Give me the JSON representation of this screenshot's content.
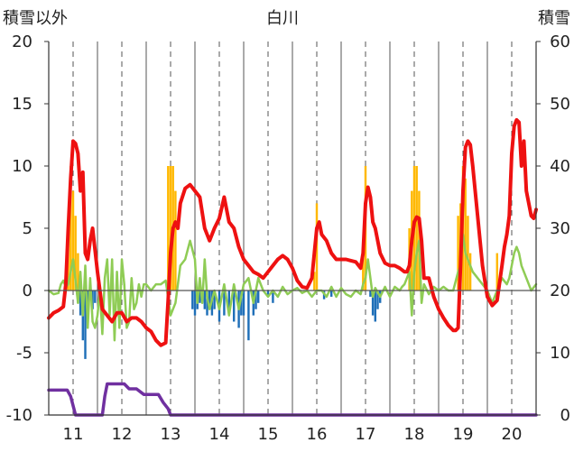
{
  "chart_data": {
    "type": "line",
    "title": "白川",
    "ylabel_left": "積雪以外",
    "ylabel_right": "積雪",
    "x_range": [
      10.5,
      20.5
    ],
    "ylim_left": [
      -10,
      20
    ],
    "ylim_right": [
      0,
      60
    ],
    "x_ticks": [
      11,
      12,
      13,
      14,
      15,
      16,
      17,
      18,
      19,
      20
    ],
    "x_tick_labels": [
      "11",
      "12",
      "13",
      "14",
      "15",
      "16",
      "17",
      "18",
      "19",
      "20"
    ],
    "y_ticks_left": [
      -10,
      -5,
      0,
      5,
      10,
      15,
      20
    ],
    "y_tick_labels_left": [
      "-10",
      "-5",
      "0",
      "5",
      "10",
      "15",
      "20"
    ],
    "y_ticks_right": [
      0,
      10,
      20,
      30,
      40,
      50,
      60
    ],
    "y_tick_labels_right": [
      "0",
      "10",
      "20",
      "30",
      "40",
      "50",
      "60"
    ],
    "grid": "dashed-vertical",
    "colors": {
      "red": "#ee1111",
      "green": "#8fcc55",
      "orange": "#ffb800",
      "blue": "#1f6fb8",
      "purple": "#7030a0",
      "grid": "#555555",
      "axis": "#333333"
    },
    "series": [
      {
        "style": "bar",
        "axis": "left",
        "color": "#ffb800",
        "x": [
          10.9,
          10.95,
          11.0,
          11.05,
          11.1,
          12.95,
          13.0,
          13.05,
          13.1,
          15.95,
          16.0,
          16.95,
          17.0,
          17.9,
          17.95,
          18.0,
          18.05,
          18.1,
          18.9,
          18.95,
          19.0,
          19.05,
          19.1,
          19.15,
          19.7
        ],
        "y": [
          4.5,
          10,
          8,
          6,
          3,
          10,
          10,
          10,
          8,
          1.5,
          7,
          4,
          10,
          5,
          8,
          10,
          10,
          8,
          6,
          7,
          10,
          9,
          6,
          3,
          3
        ]
      },
      {
        "style": "bar",
        "axis": "left",
        "color": "#1f6fb8",
        "x": [
          11.1,
          11.15,
          11.2,
          11.25,
          11.3,
          11.4,
          11.45,
          13.45,
          13.5,
          13.55,
          13.6,
          13.7,
          13.75,
          13.8,
          13.85,
          13.9,
          14.0,
          14.1,
          14.2,
          14.3,
          14.4,
          14.45,
          14.5,
          14.6,
          14.7,
          14.75,
          14.8,
          15.0,
          15.1,
          16.15,
          16.3,
          17.1,
          17.15,
          17.2,
          17.25,
          17.3
        ],
        "y": [
          -1,
          -2,
          -4,
          -5.5,
          -3,
          -1.5,
          -1,
          -1.5,
          -2,
          -1.5,
          -1,
          -1.5,
          -2,
          -1.5,
          -2,
          -1.5,
          -2.5,
          -2,
          -1.5,
          -2.5,
          -3,
          -2,
          -2,
          -4,
          -2,
          -1.5,
          -1,
          -0.5,
          -1,
          -0.7,
          -0.5,
          -0.5,
          -2,
          -2.5,
          -1.5,
          -1
        ]
      },
      {
        "style": "line",
        "axis": "left",
        "color": "#8fcc55",
        "x": [
          10.5,
          10.6,
          10.7,
          10.75,
          10.8,
          10.85,
          10.9,
          11.0,
          11.05,
          11.1,
          11.15,
          11.2,
          11.25,
          11.3,
          11.35,
          11.4,
          11.45,
          11.5,
          11.55,
          11.6,
          11.65,
          11.7,
          11.75,
          11.8,
          11.85,
          11.9,
          11.95,
          12.0,
          12.05,
          12.1,
          12.15,
          12.2,
          12.25,
          12.3,
          12.35,
          12.4,
          12.45,
          12.5,
          12.6,
          12.7,
          12.8,
          12.9,
          13.0,
          13.1,
          13.2,
          13.3,
          13.4,
          13.5,
          13.55,
          13.6,
          13.65,
          13.7,
          13.75,
          13.8,
          13.9,
          14.0,
          14.1,
          14.2,
          14.3,
          14.4,
          14.5,
          14.6,
          14.7,
          14.8,
          14.9,
          15.0,
          15.1,
          15.2,
          15.3,
          15.4,
          15.5,
          15.6,
          15.7,
          15.8,
          15.9,
          16.0,
          16.1,
          16.2,
          16.3,
          16.4,
          16.5,
          16.6,
          16.7,
          16.8,
          16.9,
          16.95,
          17.0,
          17.05,
          17.1,
          17.15,
          17.2,
          17.3,
          17.4,
          17.5,
          17.6,
          17.7,
          17.75,
          17.8,
          17.85,
          17.9,
          17.95,
          18.0,
          18.05,
          18.1,
          18.15,
          18.2,
          18.3,
          18.4,
          18.5,
          18.6,
          18.7,
          18.8,
          18.9,
          18.95,
          19.0,
          19.05,
          19.1,
          19.2,
          19.3,
          19.4,
          19.5,
          19.6,
          19.7,
          19.8,
          19.9,
          19.95,
          20.0,
          20.05,
          20.1,
          20.15,
          20.2,
          20.3,
          20.4,
          20.5
        ],
        "y": [
          0,
          -0.3,
          -0.2,
          0.5,
          0.8,
          0.3,
          0.5,
          2.5,
          0.8,
          -1,
          1.5,
          -2,
          2,
          -3,
          1,
          -2.5,
          -3,
          -2,
          0,
          -3.5,
          1,
          2.5,
          -2,
          2.5,
          -4,
          1.5,
          -3,
          2.5,
          0.5,
          -3,
          -2.5,
          1,
          -1.5,
          -1,
          0.5,
          -0.5,
          0.5,
          0.5,
          0,
          0.5,
          0.5,
          0.8,
          -2,
          -1,
          2,
          2.5,
          4,
          2.5,
          -1,
          1,
          -1,
          2.5,
          -0.5,
          -1.5,
          0,
          -1.5,
          0.5,
          -2,
          0.5,
          -1.5,
          0.5,
          1,
          -1,
          1,
          0,
          -0.5,
          0,
          -0.5,
          0.3,
          -0.3,
          0,
          0.2,
          -0.2,
          0,
          -0.5,
          0,
          0,
          -0.5,
          0.3,
          -0.5,
          0.2,
          -0.3,
          -0.5,
          0,
          -0.3,
          0.5,
          1,
          2.5,
          1,
          -0.5,
          0.2,
          -0.5,
          0.3,
          -0.5,
          0.3,
          0,
          0.3,
          0.5,
          1,
          1.5,
          -2,
          1.5,
          3,
          4,
          -1,
          0.5,
          -0.3,
          0.3,
          0,
          0.3,
          0,
          0,
          1.5,
          2,
          4.5,
          3,
          2.5,
          1.5,
          1,
          0.5,
          0,
          -1,
          0,
          1,
          0.5,
          1,
          2,
          3,
          3.5,
          3,
          2,
          1,
          0,
          0.5
        ]
      },
      {
        "style": "line",
        "axis": "left",
        "color": "#ee1111",
        "x": [
          10.5,
          10.6,
          10.7,
          10.8,
          10.85,
          10.9,
          10.95,
          11.0,
          11.05,
          11.1,
          11.15,
          11.2,
          11.25,
          11.3,
          11.35,
          11.4,
          11.5,
          11.6,
          11.7,
          11.8,
          11.9,
          12.0,
          12.1,
          12.2,
          12.3,
          12.4,
          12.5,
          12.6,
          12.7,
          12.8,
          12.9,
          12.95,
          13.0,
          13.05,
          13.1,
          13.15,
          13.2,
          13.3,
          13.4,
          13.5,
          13.6,
          13.7,
          13.8,
          13.9,
          14.0,
          14.1,
          14.2,
          14.3,
          14.4,
          14.5,
          14.6,
          14.7,
          14.8,
          14.9,
          15.0,
          15.1,
          15.2,
          15.3,
          15.4,
          15.5,
          15.6,
          15.7,
          15.8,
          15.9,
          15.95,
          16.0,
          16.05,
          16.1,
          16.2,
          16.3,
          16.4,
          16.5,
          16.6,
          16.7,
          16.8,
          16.9,
          16.95,
          17.0,
          17.05,
          17.1,
          17.15,
          17.2,
          17.3,
          17.4,
          17.5,
          17.6,
          17.7,
          17.8,
          17.85,
          17.9,
          17.95,
          18.0,
          18.05,
          18.1,
          18.15,
          18.2,
          18.3,
          18.4,
          18.5,
          18.6,
          18.7,
          18.8,
          18.85,
          18.9,
          18.95,
          19.0,
          19.05,
          19.1,
          19.15,
          19.2,
          19.3,
          19.4,
          19.5,
          19.6,
          19.7,
          19.8,
          19.85,
          19.9,
          19.95,
          20.0,
          20.05,
          20.1,
          20.15,
          20.2,
          20.25,
          20.3,
          20.4,
          20.45,
          20.5
        ],
        "y": [
          -2.2,
          -1.8,
          -1.6,
          -1.3,
          0.5,
          5,
          9,
          12,
          11.8,
          11,
          8,
          9.5,
          3,
          2.5,
          4,
          5,
          1.5,
          -1.5,
          -2,
          -2.5,
          -1.8,
          -1.8,
          -2.5,
          -2.2,
          -2.2,
          -2.5,
          -3,
          -3.3,
          -4,
          -4.4,
          -4.2,
          -0.8,
          3,
          5,
          5.5,
          5,
          7,
          8.2,
          8.5,
          8,
          7.5,
          5,
          4,
          5,
          5.8,
          7.5,
          5.5,
          5,
          3.5,
          2.5,
          2,
          1.5,
          1.3,
          1,
          1.5,
          2,
          2.5,
          2.8,
          2.5,
          1.8,
          0.8,
          0.3,
          0.2,
          1,
          3,
          5,
          5.5,
          4.5,
          4,
          3,
          2.5,
          2.5,
          2.5,
          2.4,
          2.3,
          1.8,
          3,
          7,
          8.3,
          7.5,
          5.5,
          5,
          3,
          2.2,
          2,
          2,
          1.8,
          1.5,
          1.5,
          2,
          4,
          5.5,
          5.9,
          5.8,
          4,
          1,
          1,
          -0.5,
          -1.5,
          -2.2,
          -2.8,
          -3.2,
          -3.2,
          -3,
          2,
          8,
          11.5,
          12,
          11.7,
          10,
          6,
          2,
          -0.5,
          -1.2,
          -0.8,
          2,
          3.5,
          4.5,
          6,
          11,
          13.2,
          13.7,
          13.5,
          10,
          12,
          8,
          6,
          5.8,
          6.5
        ]
      },
      {
        "style": "line",
        "axis": "right",
        "color": "#7030a0",
        "x": [
          10.5,
          10.8,
          10.88,
          10.95,
          11.05,
          11.15,
          11.5,
          11.6,
          11.65,
          11.7,
          11.9,
          12.05,
          12.15,
          12.3,
          12.45,
          12.75,
          12.85,
          12.95,
          13.0,
          13.2,
          20.5
        ],
        "y": [
          4,
          4,
          4,
          3,
          0,
          0,
          0,
          0,
          3,
          5,
          5,
          5,
          4.2,
          4.2,
          3.3,
          3.3,
          2,
          1,
          0,
          0,
          0
        ]
      }
    ]
  }
}
